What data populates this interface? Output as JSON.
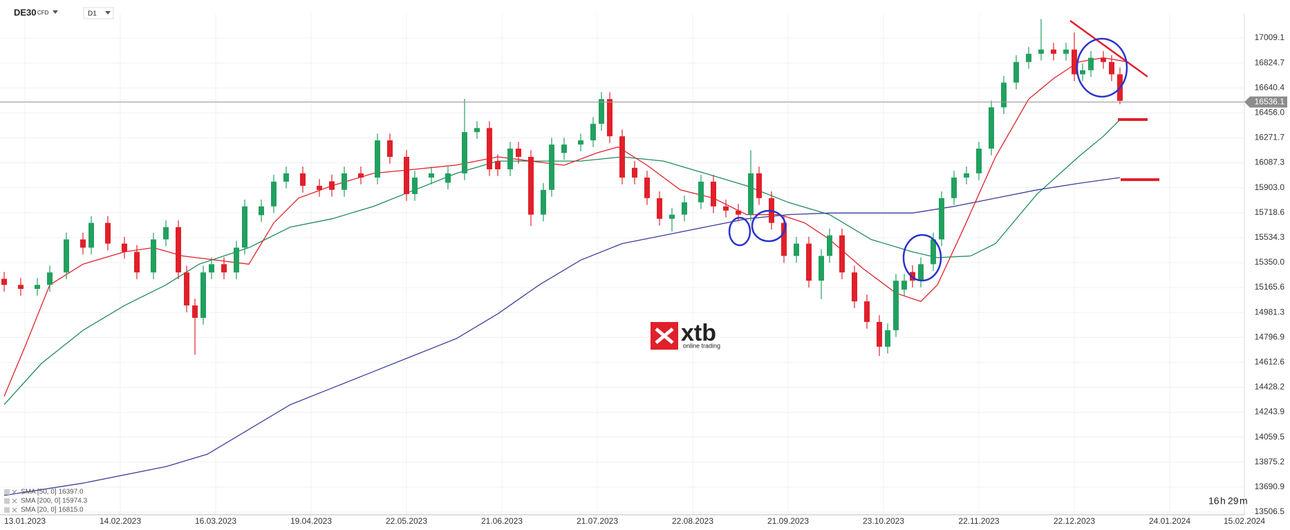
{
  "chart_data": {
    "type": "candlestick",
    "symbol": "DE30",
    "instrument_type": "CFD",
    "timeframe": "D1",
    "logo": {
      "name": "xtb",
      "tagline": "online trading"
    },
    "countdown": {
      "hours": "16",
      "hours_unit": "h",
      "minutes": "29",
      "minutes_unit": "m"
    },
    "up_color": "#22a060",
    "down_color": "#e0202a",
    "x": [
      -5,
      -1,
      3,
      6,
      10,
      14,
      16,
      20,
      24,
      27,
      31,
      34,
      37,
      39,
      41,
      43,
      45,
      48,
      51,
      53,
      57,
      60,
      63,
      67,
      71,
      74,
      77,
      81,
      85,
      88,
      92,
      94,
      98,
      102,
      106,
      109,
      112,
      114,
      117,
      119,
      122,
      125,
      127,
      130,
      134,
      137,
      139,
      141,
      144,
      147,
      150,
      153,
      156,
      159,
      163,
      166,
      169,
      172,
      175,
      177,
      180,
      183,
      186,
      189,
      192,
      194,
      197,
      200,
      203,
      206,
      208,
      210,
      212,
      214,
      216,
      219,
      221,
      224,
      227,
      230,
      233,
      236,
      239,
      242,
      245,
      248,
      251,
      253,
      255,
      257,
      260,
      262,
      264
    ],
    "open": [
      15230,
      15185,
      15155,
      15185,
      15277,
      15521,
      15460,
      15643,
      15490,
      15429,
      15277,
      15521,
      15612,
      15277,
      15033,
      14941,
      15277,
      15338,
      15277,
      15460,
      15700,
      15765,
      15948,
      16009,
      15917,
      15950,
      15887,
      16009,
      15978,
      16253,
      16131,
      15856,
      15978,
      15940,
      16009,
      16314,
      16344,
      16100,
      16039,
      16192,
      16131,
      15704,
      15887,
      16160,
      16222,
      16253,
      16375,
      16558,
      16283,
      16050,
      15978,
      15826,
      15673,
      15704,
      15795,
      15948,
      15765,
      15734,
      15704,
      16009,
      15826,
      15643,
      15399,
      15490,
      15216,
      15399,
      15551,
      15277,
      15063,
      14911,
      14728,
      14850,
      15150,
      15280,
      15216,
      15338,
      15521,
      15826,
      15978,
      16009,
      16192,
      16497,
      16680,
      16832,
      16893,
      16924,
      16893,
      16924,
      16741,
      16771,
      16863,
      16832,
      16741
    ],
    "high": [
      15280,
      15235,
      15235,
      15327,
      15571,
      15571,
      15693,
      15693,
      15540,
      15479,
      15571,
      15662,
      15662,
      15327,
      15083,
      15327,
      15388,
      15388,
      15510,
      15815,
      15815,
      15998,
      16059,
      16059,
      15967,
      16000,
      16059,
      16059,
      16303,
      16303,
      16181,
      16028,
      16059,
      16059,
      16560,
      16394,
      16394,
      16150,
      16242,
      16242,
      16181,
      15937,
      16272,
      16272,
      16303,
      16425,
      16610,
      16608,
      16333,
      16100,
      16028,
      15876,
      15754,
      15845,
      15998,
      15998,
      15815,
      15784,
      16180,
      16059,
      15876,
      15693,
      15540,
      15540,
      15449,
      15601,
      15601,
      15327,
      15113,
      14961,
      14900,
      15266,
      15266,
      15330,
      15388,
      15571,
      15876,
      16028,
      16059,
      16242,
      16547,
      16730,
      16882,
      16943,
      17150,
      16974,
      16974,
      17050,
      16821,
      16913,
      16913,
      16882,
      16791
    ],
    "low": [
      15135,
      15105,
      15105,
      15135,
      15227,
      15410,
      15410,
      15440,
      15379,
      15227,
      15227,
      15471,
      15227,
      14983,
      14670,
      14891,
      15227,
      15227,
      15227,
      15410,
      15650,
      15715,
      15898,
      15867,
      15837,
      15837,
      15837,
      15928,
      15928,
      16081,
      15806,
      15806,
      15928,
      15890,
      15959,
      16264,
      15989,
      15989,
      15989,
      16081,
      15620,
      15654,
      15837,
      16110,
      16172,
      16203,
      16325,
      16233,
      15928,
      15928,
      15776,
      15623,
      15580,
      15654,
      15745,
      15715,
      15684,
      15654,
      15654,
      15776,
      15593,
      15349,
      15349,
      15166,
      15080,
      15349,
      15227,
      15013,
      14861,
      14660,
      14678,
      14800,
      15100,
      15166,
      15166,
      15288,
      15471,
      15776,
      15928,
      15959,
      16142,
      16447,
      16630,
      16782,
      16843,
      16843,
      16843,
      16691,
      16691,
      16721,
      16782,
      16691,
      16520
    ],
    "close": [
      15185,
      15155,
      15185,
      15277,
      15521,
      15460,
      15643,
      15490,
      15429,
      15277,
      15521,
      15612,
      15277,
      15033,
      14941,
      15277,
      15338,
      15277,
      15460,
      15765,
      15765,
      15948,
      16009,
      15917,
      15887,
      15887,
      16009,
      15978,
      16253,
      16131,
      15856,
      15978,
      16009,
      16009,
      16314,
      16344,
      16039,
      16039,
      16192,
      16131,
      15704,
      15887,
      16222,
      16222,
      16253,
      16375,
      16558,
      16283,
      15978,
      15978,
      15826,
      15673,
      15704,
      15795,
      15948,
      15765,
      15734,
      15704,
      16009,
      15826,
      15643,
      15399,
      15490,
      15216,
      15399,
      15551,
      15277,
      15063,
      14911,
      14728,
      14850,
      15216,
      15216,
      15216,
      15338,
      15521,
      15826,
      15978,
      16009,
      16192,
      16497,
      16680,
      16832,
      16893,
      16924,
      16893,
      16924,
      16741,
      16771,
      16863,
      16832,
      16741,
      16545
    ],
    "series": [
      {
        "name": "SMA [50, 0] 16397.0",
        "color": "#1f8a5a",
        "x": [
          -5,
          4,
          14,
          24,
          34,
          42,
          54,
          64,
          74,
          84,
          94,
          104,
          114,
          124,
          134,
          144,
          154,
          164,
          174,
          184,
          194,
          204,
          214,
          220,
          228,
          234,
          244,
          254,
          260,
          264
        ],
        "values": [
          14300,
          14605,
          14849,
          15032,
          15185,
          15338,
          15460,
          15612,
          15673,
          15765,
          15887,
          16009,
          16100,
          16100,
          16100,
          16131,
          16100,
          16009,
          15917,
          15795,
          15704,
          15521,
          15429,
          15386,
          15399,
          15490,
          15856,
          16131,
          16283,
          16405
        ]
      },
      {
        "name": "SMA [200, 0] 15974.3",
        "color": "#3a3f9a",
        "x": [
          -5,
          14,
          34,
          44,
          54,
          64,
          74,
          84,
          94,
          104,
          114,
          124,
          134,
          144,
          154,
          164,
          174,
          184,
          194,
          204,
          214,
          224,
          234,
          244,
          254,
          264
        ],
        "values": [
          13629,
          13720,
          13842,
          13934,
          14117,
          14300,
          14422,
          14544,
          14666,
          14788,
          14971,
          15185,
          15368,
          15490,
          15551,
          15612,
          15673,
          15704,
          15716,
          15716,
          15716,
          15765,
          15826,
          15887,
          15935,
          15978
        ]
      },
      {
        "name": "SMA [20, 0] 16815.0",
        "color": "#e0202a",
        "x": [
          -5,
          0,
          6,
          14,
          24,
          31,
          38,
          46,
          54,
          60,
          66,
          74,
          84,
          94,
          104,
          114,
          122,
          130,
          138,
          143,
          150,
          158,
          166,
          174,
          182,
          188,
          194,
          202,
          210,
          216,
          220,
          226,
          234,
          242,
          248,
          254,
          260,
          266
        ],
        "values": [
          14361,
          14727,
          15185,
          15338,
          15429,
          15460,
          15399,
          15368,
          15338,
          15643,
          15826,
          15917,
          16009,
          16039,
          16070,
          16131,
          16100,
          16069,
          16161,
          16204,
          16069,
          15887,
          15826,
          15704,
          15704,
          15643,
          15521,
          15307,
          15124,
          15063,
          15185,
          15581,
          16131,
          16558,
          16710,
          16832,
          16863,
          16832
        ]
      }
    ],
    "last_price": 16536.1,
    "ylim": [
      13486,
      17188
    ],
    "yticks": [
      17009.1,
      16824.7,
      16640.4,
      {
        "value": 16456,
        "label": "16456.0"
      },
      16271.7,
      16087.3,
      {
        "value": 15903,
        "label": "15903.0"
      },
      15718.6,
      15534.3,
      {
        "value": 15350,
        "label": "15350.0"
      },
      15165.6,
      14981.3,
      14796.9,
      14612.6,
      14428.2,
      14243.9,
      14059.5,
      13875.2,
      13690.9,
      13506.5
    ],
    "xlim": [
      -6,
      299
    ],
    "xticks": [
      {
        "value": 0,
        "label": "13.01.2023"
      },
      {
        "value": 23,
        "label": "14.02.2023"
      },
      {
        "value": 46,
        "label": "16.03.2023"
      },
      {
        "value": 69,
        "label": "19.04.2023"
      },
      {
        "value": 92,
        "label": "22.05.2023"
      },
      {
        "value": 115,
        "label": "21.06.2023"
      },
      {
        "value": 138,
        "label": "21.07.2023"
      },
      {
        "value": 161,
        "label": "22.08.2023"
      },
      {
        "value": 184,
        "label": "21.09.2023"
      },
      {
        "value": 207,
        "label": "23.10.2023"
      },
      {
        "value": 230,
        "label": "22.11.2023"
      },
      {
        "value": 253,
        "label": "22.12.2023"
      },
      {
        "value": 276,
        "label": "24.01.2024"
      },
      {
        "value": 299,
        "label": "15.02.2024"
      }
    ],
    "grid": true
  }
}
